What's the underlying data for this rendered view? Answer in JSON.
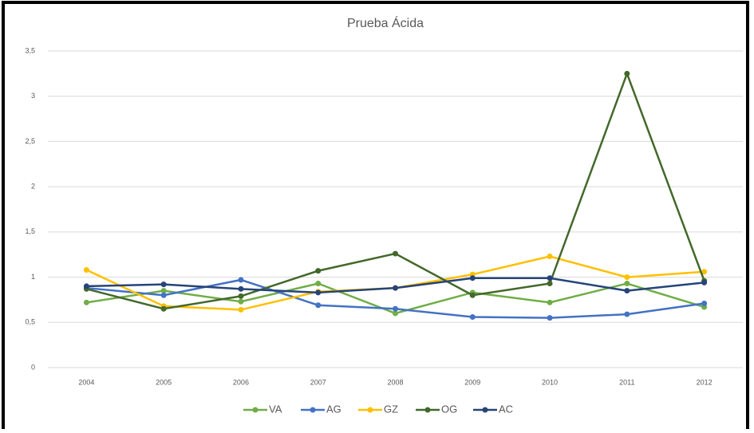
{
  "chart_data": {
    "type": "line",
    "title": "Prueba Ácida",
    "categories": [
      "2004",
      "2005",
      "2006",
      "2007",
      "2008",
      "2009",
      "2010",
      "2011",
      "2012"
    ],
    "series": [
      {
        "name": "VA",
        "color": "#70ad47",
        "values": [
          0.72,
          0.85,
          0.73,
          0.93,
          0.6,
          0.83,
          0.72,
          0.93,
          0.67
        ]
      },
      {
        "name": "AG",
        "color": "#4472c4",
        "values": [
          0.88,
          0.8,
          0.97,
          0.69,
          0.65,
          0.56,
          0.55,
          0.59,
          0.71
        ]
      },
      {
        "name": "GZ",
        "color": "#ffc000",
        "values": [
          1.08,
          0.68,
          0.64,
          0.84,
          0.88,
          1.03,
          1.23,
          1.0,
          1.06
        ]
      },
      {
        "name": "OG",
        "color": "#43682b",
        "values": [
          0.87,
          0.65,
          0.79,
          1.07,
          1.26,
          0.8,
          0.93,
          3.25,
          0.96
        ]
      },
      {
        "name": "AC",
        "color": "#264478",
        "values": [
          0.9,
          0.92,
          0.87,
          0.83,
          0.88,
          0.99,
          0.99,
          0.85,
          0.94
        ]
      }
    ],
    "ylim": [
      0,
      3.5
    ],
    "yticks": [
      0,
      {
        "value": 0.5,
        "label": "0,5"
      },
      1,
      {
        "value": 1.5,
        "label": "1,5"
      },
      2,
      {
        "value": 2.5,
        "label": "2,5"
      },
      3,
      {
        "value": 3.5,
        "label": "3,5"
      }
    ],
    "grid": true,
    "legend": "bottom"
  }
}
